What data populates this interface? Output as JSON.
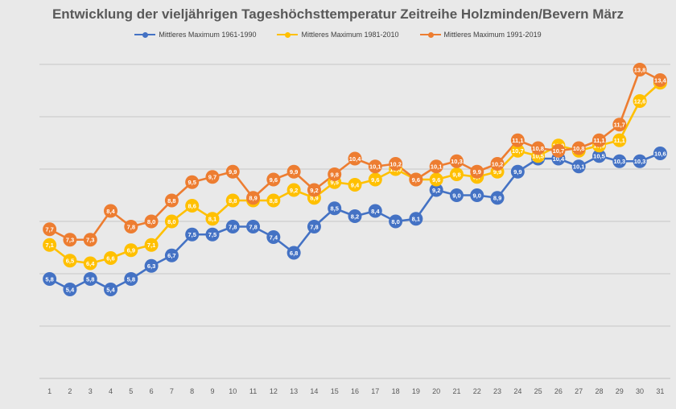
{
  "chart_data": {
    "type": "line",
    "title": "Entwicklung der vieljährigen Tageshöchsttemperatur Zeitreihe Holzminden/Bevern März",
    "xlabel": "",
    "ylabel": "",
    "ylim": [
      2,
      14
    ],
    "grid": true,
    "legend_position": "top",
    "categories": [
      "1",
      "2",
      "3",
      "4",
      "5",
      "6",
      "7",
      "8",
      "9",
      "10",
      "11",
      "12",
      "13",
      "14",
      "15",
      "16",
      "17",
      "18",
      "19",
      "20",
      "21",
      "22",
      "23",
      "24",
      "25",
      "26",
      "27",
      "28",
      "29",
      "30",
      "31"
    ],
    "series": [
      {
        "name": "Mittleres Maximum 1961-1990",
        "color": "#4472c4",
        "values": [
          5.8,
          5.4,
          5.8,
          5.4,
          5.8,
          6.3,
          6.7,
          7.5,
          7.5,
          7.8,
          7.8,
          7.4,
          6.8,
          7.8,
          8.5,
          8.2,
          8.4,
          8.0,
          8.1,
          9.2,
          9.0,
          9.0,
          8.9,
          9.9,
          10.4,
          10.4,
          10.1,
          10.5,
          10.3,
          10.3,
          10.6
        ]
      },
      {
        "name": "Mittleres Maximum 1981-2010",
        "color": "#ffc000",
        "values": [
          7.1,
          6.5,
          6.4,
          6.6,
          6.9,
          7.1,
          8.0,
          8.6,
          8.1,
          8.8,
          8.8,
          8.8,
          9.2,
          8.9,
          9.5,
          9.4,
          9.6,
          10.0,
          9.6,
          9.6,
          9.8,
          9.7,
          9.9,
          10.7,
          10.5,
          10.9,
          10.7,
          10.9,
          11.1,
          12.6,
          13.3
        ]
      },
      {
        "name": "Mittleres Maximum 1991-2019",
        "color": "#ed7d31",
        "values": [
          7.7,
          7.3,
          7.3,
          8.4,
          7.8,
          8.0,
          8.8,
          9.5,
          9.7,
          9.9,
          8.9,
          9.6,
          9.9,
          9.2,
          9.8,
          10.4,
          10.1,
          10.2,
          9.6,
          10.1,
          10.3,
          9.9,
          10.2,
          11.1,
          10.8,
          10.7,
          10.8,
          11.1,
          11.7,
          13.8,
          13.4
        ]
      }
    ]
  }
}
